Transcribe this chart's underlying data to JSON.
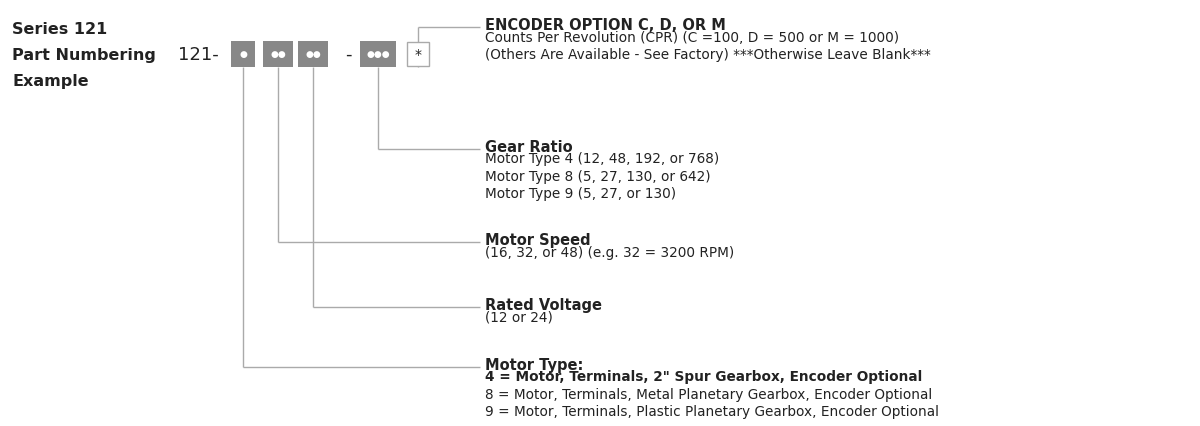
{
  "title_line1": "Series 121",
  "title_line2": "Part Numbering",
  "title_line3": "Example",
  "prefix": "121-",
  "bg_color": "#ffffff",
  "line_color": "#aaaaaa",
  "box_fill": "#888888",
  "star_box_color": "#ffffff",
  "star_box_edge": "#aaaaaa",
  "text_color": "#222222",
  "annotations": [
    {
      "bold_text": "ENCODER OPTION C, D, OR M",
      "normal_lines": [
        "Counts Per Revolution (CPR) (C =100, D = 500 or M = 1000)",
        "(Others Are Available - See Factory) ***Otherwise Leave Blank***"
      ],
      "bold_line1": false
    },
    {
      "bold_text": "Gear Ratio",
      "normal_lines": [
        "Motor Type 4 (12, 48, 192, or 768)",
        "Motor Type 8 (5, 27, 130, or 642)",
        "Motor Type 9 (5, 27, or 130)"
      ],
      "bold_line1": false
    },
    {
      "bold_text": "Motor Speed",
      "normal_lines": [
        "(16, 32, or 48) (e.g. 32 = 3200 RPM)"
      ],
      "bold_line1": false
    },
    {
      "bold_text": "Rated Voltage",
      "normal_lines": [
        "(12 or 24)"
      ],
      "bold_line1": false
    },
    {
      "bold_text": "Motor Type:",
      "normal_lines": [
        "4 = Motor, Terminals, 2\" Spur Gearbox, Encoder Optional",
        "8 = Motor, Terminals, Metal Planetary Gearbox, Encoder Optional",
        "9 = Motor, Terminals, Plastic Planetary Gearbox, Encoder Optional"
      ],
      "bold_line1": true
    }
  ]
}
